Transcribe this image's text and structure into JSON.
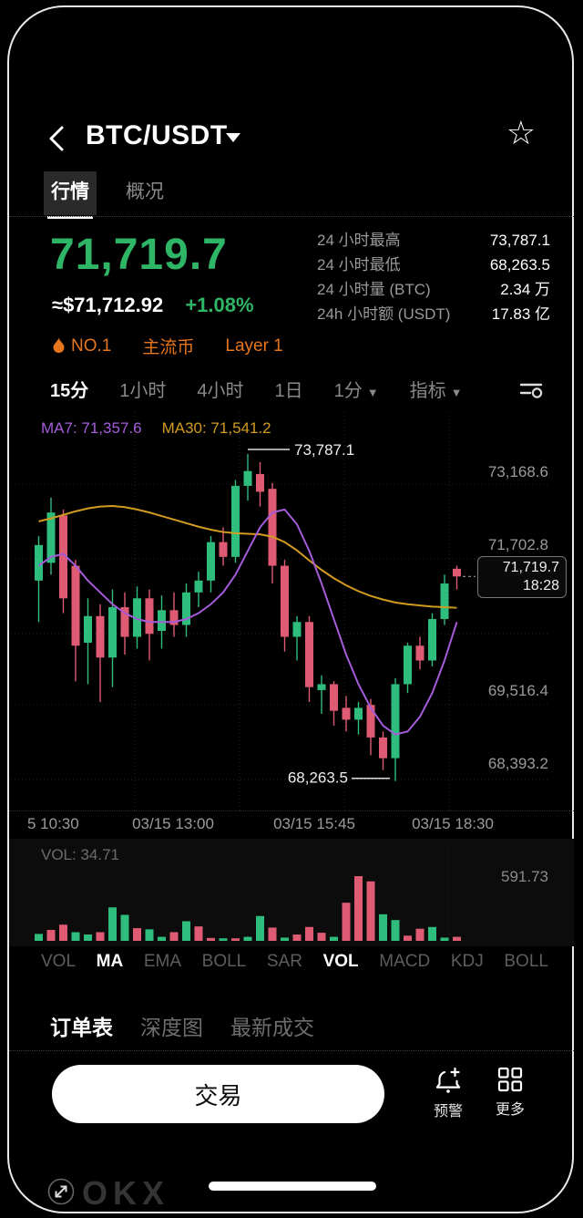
{
  "header": {
    "title": "BTC/USDT"
  },
  "tabs": [
    {
      "label": "行情",
      "active": true
    },
    {
      "label": "概况",
      "active": false
    }
  ],
  "price": {
    "last": "71,719.7",
    "fiat": "≈$71,712.92",
    "change": "+1.08%"
  },
  "stats": [
    {
      "label": "24 小时最高",
      "value": "73,787.1"
    },
    {
      "label": "24 小时最低",
      "value": "68,263.5"
    },
    {
      "label": "24 小时量 (BTC)",
      "value": "2.34 万"
    },
    {
      "label": "24h 小时额 (USDT)",
      "value": "17.83 亿"
    }
  ],
  "badges": [
    {
      "label": "NO.1"
    },
    {
      "label": "主流币"
    },
    {
      "label": "Layer 1"
    }
  ],
  "timeframes": [
    {
      "label": "15分",
      "active": true,
      "caret": false
    },
    {
      "label": "1小时",
      "active": false,
      "caret": false
    },
    {
      "label": "4小时",
      "active": false,
      "caret": false
    },
    {
      "label": "1日",
      "active": false,
      "caret": false
    },
    {
      "label": "1分",
      "active": false,
      "caret": true
    },
    {
      "label": "指标",
      "active": false,
      "caret": true
    }
  ],
  "colors": {
    "green": "#2eb566",
    "up": "#2ebd7d",
    "down": "#df5a73",
    "ma7": "#a55cd9",
    "ma30": "#d29b20",
    "badge_orange": "#e5761e"
  },
  "chart_data": {
    "type": "candlestick",
    "ma7_label": "MA7: 71,357.6",
    "ma30_label": "MA30: 71,541.2",
    "high_annotation": "73,787.1",
    "low_annotation": "68,263.5",
    "price_tag": {
      "price": "71,719.7",
      "time": "18:28"
    },
    "y_axis_labels": [
      "73,168.6",
      "71,702.8",
      "69,516.4",
      "68,393.2"
    ],
    "x_axis_labels": [
      "5 10:30",
      "03/15 13:00",
      "03/15 15:45",
      "03/15 18:30"
    ],
    "ylim": [
      67751,
      74450
    ],
    "grid": true,
    "vol_label": "VOL: 34.71",
    "vol_max_label": "591.73",
    "vol_scale_max": 591.73,
    "watermark": "OKX",
    "candles": [
      [
        71650,
        72400,
        70950,
        72250
      ],
      [
        71950,
        73050,
        71750,
        72800
      ],
      [
        72750,
        72850,
        71100,
        71350
      ],
      [
        71900,
        72000,
        69950,
        70550
      ],
      [
        70600,
        71350,
        69900,
        71050
      ],
      [
        71050,
        71250,
        69600,
        70350
      ],
      [
        70350,
        71500,
        69850,
        71200
      ],
      [
        71200,
        71450,
        70400,
        70700
      ],
      [
        70700,
        71550,
        70500,
        71350
      ],
      [
        71350,
        71500,
        70300,
        70750
      ],
      [
        70800,
        71400,
        70500,
        71150
      ],
      [
        71150,
        71450,
        70700,
        70900
      ],
      [
        70900,
        71600,
        70700,
        71450
      ],
      [
        71450,
        71800,
        71200,
        71650
      ],
      [
        71650,
        72400,
        71450,
        72300
      ],
      [
        72300,
        72550,
        71900,
        72050
      ],
      [
        72050,
        73350,
        71950,
        73250
      ],
      [
        73250,
        73787.1,
        73000,
        73500
      ],
      [
        73450,
        73650,
        72900,
        73150
      ],
      [
        73200,
        73300,
        71600,
        71900
      ],
      [
        71900,
        72000,
        70450,
        70700
      ],
      [
        70700,
        71050,
        70300,
        70950
      ],
      [
        70950,
        71050,
        69600,
        69850
      ],
      [
        69800,
        70050,
        69400,
        69900
      ],
      [
        69900,
        69950,
        69200,
        69450
      ],
      [
        69500,
        69700,
        69100,
        69300
      ],
      [
        69300,
        69600,
        69050,
        69500
      ],
      [
        69550,
        69650,
        68700,
        69000
      ],
      [
        69000,
        69100,
        68450,
        68650
      ],
      [
        68650,
        70000,
        68263.5,
        69900
      ],
      [
        69900,
        70600,
        69750,
        70550
      ],
      [
        70550,
        70700,
        70150,
        70300
      ],
      [
        70300,
        71100,
        70200,
        71000
      ],
      [
        71000,
        71750,
        70900,
        71600
      ],
      [
        71850,
        71900,
        71500,
        71719.7
      ]
    ],
    "volumes": [
      [
        60,
        "g"
      ],
      [
        95,
        "r"
      ],
      [
        140,
        "r"
      ],
      [
        75,
        "g"
      ],
      [
        55,
        "g"
      ],
      [
        75,
        "r"
      ],
      [
        290,
        "g"
      ],
      [
        225,
        "g"
      ],
      [
        110,
        "r"
      ],
      [
        100,
        "g"
      ],
      [
        35,
        "g"
      ],
      [
        75,
        "r"
      ],
      [
        170,
        "g"
      ],
      [
        125,
        "r"
      ],
      [
        25,
        "r"
      ],
      [
        22,
        "g"
      ],
      [
        22,
        "r"
      ],
      [
        35,
        "g"
      ],
      [
        215,
        "g"
      ],
      [
        115,
        "r"
      ],
      [
        28,
        "g"
      ],
      [
        55,
        "r"
      ],
      [
        120,
        "r"
      ],
      [
        70,
        "r"
      ],
      [
        35,
        "g"
      ],
      [
        330,
        "r"
      ],
      [
        560,
        "r"
      ],
      [
        515,
        "r"
      ],
      [
        230,
        "g"
      ],
      [
        180,
        "g"
      ],
      [
        45,
        "r"
      ],
      [
        105,
        "r"
      ],
      [
        120,
        "g"
      ],
      [
        28,
        "g"
      ],
      [
        34.71,
        "r"
      ]
    ],
    "ma7": [
      71900,
      72050,
      72100,
      71900,
      71650,
      71450,
      71250,
      71100,
      71000,
      70950,
      70950,
      70950,
      71000,
      71100,
      71250,
      71450,
      71750,
      72150,
      72550,
      72800,
      72850,
      72600,
      72150,
      71600,
      71000,
      70400,
      69900,
      69500,
      69200,
      69050,
      69100,
      69350,
      69750,
      70300,
      70950
    ],
    "ma30": [
      72650,
      72700,
      72760,
      72820,
      72870,
      72900,
      72910,
      72890,
      72850,
      72800,
      72740,
      72680,
      72620,
      72560,
      72510,
      72470,
      72450,
      72440,
      72430,
      72390,
      72300,
      72160,
      71990,
      71830,
      71690,
      71570,
      71470,
      71390,
      71330,
      71280,
      71250,
      71230,
      71210,
      71200,
      71190
    ]
  },
  "indicator_tabs": [
    {
      "label": "VOL",
      "active": false
    },
    {
      "label": "MA",
      "active": true
    },
    {
      "label": "EMA",
      "active": false
    },
    {
      "label": "BOLL",
      "active": false
    },
    {
      "label": "SAR",
      "active": false
    },
    {
      "label": "VOL",
      "active": true
    },
    {
      "label": "MACD",
      "active": false
    },
    {
      "label": "KDJ",
      "active": false
    },
    {
      "label": "BOLL",
      "active": false
    }
  ],
  "order_tabs": [
    {
      "label": "订单表",
      "active": true
    },
    {
      "label": "深度图",
      "active": false
    },
    {
      "label": "最新成交",
      "active": false
    }
  ],
  "bottom_bar": {
    "trade": "交易",
    "alert": "预警",
    "more": "更多"
  }
}
